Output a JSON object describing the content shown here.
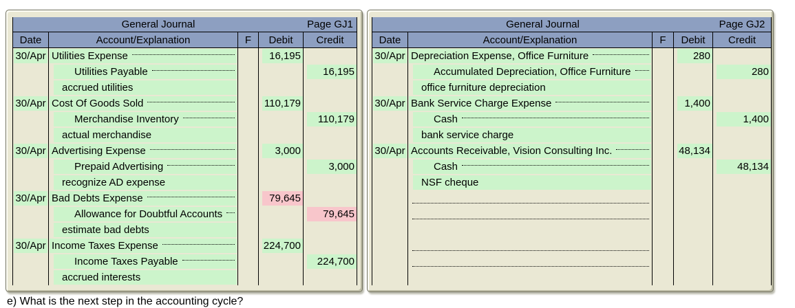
{
  "page": {
    "footer_text": "e) What is the next step in the accounting cycle?"
  },
  "colors": {
    "paper_beige": "#eae8d4",
    "header_blue": "#8d9fc1",
    "entry_green": "#ccf4cb",
    "highlight_pink": "#f8c6cb",
    "panel_border": "#727260"
  },
  "journals": [
    {
      "title": "General Journal",
      "page_label": "Page GJ1",
      "columns": [
        "Date",
        "Account/Explanation",
        "F",
        "Debit",
        "Credit"
      ],
      "rows": [
        {
          "date": "30/Apr",
          "account": "Utilities Expense",
          "kind": "debit",
          "debit": "16,195"
        },
        {
          "account": "Utilities Payable",
          "kind": "credit",
          "credit": "16,195"
        },
        {
          "account": "accrued utilities",
          "kind": "explanation"
        },
        {
          "date": "30/Apr",
          "account": "Cost Of Goods Sold",
          "kind": "debit",
          "debit": "110,179"
        },
        {
          "account": "Merchandise Inventory",
          "kind": "credit",
          "credit": "110,179"
        },
        {
          "account": "actual merchandise",
          "kind": "explanation"
        },
        {
          "date": "30/Apr",
          "account": "Advertising Expense",
          "kind": "debit",
          "debit": "3,000"
        },
        {
          "account": "Prepaid Advertising",
          "kind": "credit",
          "credit": "3,000"
        },
        {
          "account": "recognize AD expense",
          "kind": "explanation"
        },
        {
          "date": "30/Apr",
          "account": "Bad Debts Expense",
          "kind": "debit",
          "debit": "79,645",
          "highlight": true
        },
        {
          "account": "Allowance for Doubtful Accounts",
          "kind": "credit",
          "credit": "79,645",
          "highlight": true
        },
        {
          "account": "estimate bad debts",
          "kind": "explanation"
        },
        {
          "date": "30/Apr",
          "account": "Income Taxes Expense",
          "kind": "debit",
          "debit": "224,700"
        },
        {
          "account": "Income Taxes Payable",
          "kind": "credit",
          "credit": "224,700"
        },
        {
          "account": "accrued interests",
          "kind": "explanation"
        }
      ]
    },
    {
      "title": "General Journal",
      "page_label": "Page GJ2",
      "columns": [
        "Date",
        "Account/Explanation",
        "F",
        "Debit",
        "Credit"
      ],
      "rows": [
        {
          "date": "30/Apr",
          "account": "Depreciation Expense, Office Furniture",
          "kind": "debit",
          "debit": "280"
        },
        {
          "account": "Accumulated Depreciation, Office Furniture",
          "kind": "credit",
          "credit": "280"
        },
        {
          "account": "office furniture depreciation",
          "kind": "explanation"
        },
        {
          "date": "30/Apr",
          "account": "Bank Service Charge Expense",
          "kind": "debit",
          "debit": "1,400"
        },
        {
          "account": "Cash",
          "kind": "credit",
          "credit": "1,400"
        },
        {
          "account": "bank service charge",
          "kind": "explanation"
        },
        {
          "date": "30/Apr",
          "account": "Accounts Receivable, Vision Consulting Inc.",
          "kind": "debit",
          "debit": "48,134"
        },
        {
          "account": "Cash",
          "kind": "credit",
          "credit": "48,134"
        },
        {
          "account": "NSF cheque",
          "kind": "explanation"
        },
        {
          "kind": "blank-line"
        },
        {
          "kind": "blank-line"
        },
        {
          "kind": "blank"
        },
        {
          "kind": "blank-line"
        },
        {
          "kind": "blank-line"
        },
        {
          "kind": "blank"
        }
      ]
    }
  ]
}
